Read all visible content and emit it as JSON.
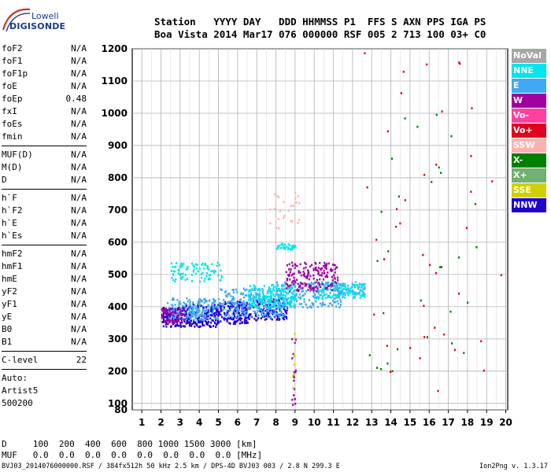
{
  "logo": {
    "line1": "Lowell",
    "line2": "DIGISONDE"
  },
  "header": {
    "line1": "Station   YYYY DAY   DDD HHMMSS P1  FFS S AXN PPS IGA PS",
    "line2": "Boa Vista 2014 Mar17 076 000000 RSF 005 2 713 100 03+ C0"
  },
  "params": {
    "group1": [
      {
        "name": "foF2",
        "value": "N/A"
      },
      {
        "name": "foF1",
        "value": "N/A"
      },
      {
        "name": "foF1p",
        "value": "N/A"
      },
      {
        "name": "foE",
        "value": "N/A"
      },
      {
        "name": "foEp",
        "value": "0.48"
      },
      {
        "name": "fxI",
        "value": "N/A"
      },
      {
        "name": "foEs",
        "value": "N/A"
      },
      {
        "name": "fmin",
        "value": "N/A"
      }
    ],
    "group2": [
      {
        "name": "MUF(D)",
        "value": "N/A"
      },
      {
        "name": "M(D)",
        "value": "N/A"
      },
      {
        "name": "D",
        "value": "N/A"
      }
    ],
    "group3": [
      {
        "name": "h`F",
        "value": "N/A"
      },
      {
        "name": "h`F2",
        "value": "N/A"
      },
      {
        "name": "h`E",
        "value": "N/A"
      },
      {
        "name": "h`Es",
        "value": "N/A"
      }
    ],
    "group4": [
      {
        "name": "hmF2",
        "value": "N/A"
      },
      {
        "name": "hmF1",
        "value": "N/A"
      },
      {
        "name": "hmE",
        "value": "N/A"
      },
      {
        "name": "yF2",
        "value": "N/A"
      },
      {
        "name": "yF1",
        "value": "N/A"
      },
      {
        "name": "yE",
        "value": "N/A"
      },
      {
        "name": "B0",
        "value": "N/A"
      },
      {
        "name": "B1",
        "value": "N/A"
      }
    ],
    "clevel": {
      "name": "C-level",
      "value": "22"
    },
    "auto_lines": [
      "Auto:",
      "Artist5",
      "500200"
    ]
  },
  "bottom": {
    "d_row": "D     100  200  400  600  800 1000 1500 3000 [km]",
    "muf_row": "MUF   0.0  0.0  0.0  0.0  0.0  0.0  0.0  0.0 [MHz]"
  },
  "footer": {
    "left": "BVJ03_2014076000000.RSF / 384fx512h 50 kHz 2.5 km / DPS-4D BVJ03 003 / 2.8 N 299.3 E",
    "right": "Ion2Png v. 1.3.17"
  },
  "legend": [
    {
      "label": "NoVal",
      "color": "#a6a6a6"
    },
    {
      "label": "NNE",
      "color": "#00e5ee"
    },
    {
      "label": "E",
      "color": "#3fa9f5"
    },
    {
      "label": "W",
      "color": "#a000a0"
    },
    {
      "label": "Vo-",
      "color": "#ff40a0"
    },
    {
      "label": "Vo+",
      "color": "#e00020"
    },
    {
      "label": "SSW",
      "color": "#ffb0b0"
    },
    {
      "label": "X-",
      "color": "#008000"
    },
    {
      "label": "X+",
      "color": "#70b070"
    },
    {
      "label": "SSE",
      "color": "#d0d000"
    },
    {
      "label": "NNW",
      "color": "#2000d0"
    }
  ],
  "chart_data": {
    "type": "scatter",
    "xlabel": "",
    "ylabel": "",
    "xlim": [
      0.5,
      20.1
    ],
    "ylim": [
      80,
      1200
    ],
    "x_ticks": [
      1,
      2,
      3,
      4,
      5,
      6,
      7,
      8,
      9,
      10,
      11,
      12,
      13,
      14,
      15,
      16,
      17,
      18,
      19,
      20
    ],
    "y_ticks": [
      80,
      100,
      200,
      300,
      400,
      500,
      600,
      700,
      800,
      900,
      1000,
      1100,
      1200
    ],
    "grid": true,
    "legend_position": "right",
    "series": [
      {
        "name": "NNW",
        "color": "#2000d0",
        "clusters": [
          {
            "x": [
              2.0,
              3.0
            ],
            "y": [
              340,
              400
            ],
            "n": 120
          },
          {
            "x": [
              3.0,
              5.0
            ],
            "y": [
              340,
              410
            ],
            "n": 200
          },
          {
            "x": [
              5.0,
              6.5
            ],
            "y": [
              350,
              420
            ],
            "n": 140
          },
          {
            "x": [
              6.5,
              8.6
            ],
            "y": [
              360,
              430
            ],
            "n": 140
          }
        ]
      },
      {
        "name": "E",
        "color": "#3fa9f5",
        "clusters": [
          {
            "x": [
              2.3,
              5.0
            ],
            "y": [
              360,
              430
            ],
            "n": 180
          },
          {
            "x": [
              5.0,
              8.5
            ],
            "y": [
              370,
              460
            ],
            "n": 220
          },
          {
            "x": [
              8.0,
              11.5
            ],
            "y": [
              400,
              480
            ],
            "n": 180
          },
          {
            "x": [
              11.0,
              12.6
            ],
            "y": [
              440,
              475
            ],
            "n": 60
          }
        ]
      },
      {
        "name": "NNE",
        "color": "#00e5ee",
        "clusters": [
          {
            "x": [
              2.5,
              5.2
            ],
            "y": [
              480,
              540
            ],
            "n": 90
          },
          {
            "x": [
              6.5,
              9.0
            ],
            "y": [
              400,
              470
            ],
            "n": 180
          },
          {
            "x": [
              8.0,
              9.0
            ],
            "y": [
              580,
              600
            ],
            "n": 35
          },
          {
            "x": [
              10.0,
              12.6
            ],
            "y": [
              430,
              480
            ],
            "n": 110
          }
        ]
      },
      {
        "name": "W",
        "color": "#a000a0",
        "clusters": [
          {
            "x": [
              2.0,
              3.2
            ],
            "y": [
              350,
              400
            ],
            "n": 70
          },
          {
            "x": [
              8.5,
              11.2
            ],
            "y": [
              450,
              540
            ],
            "n": 170
          },
          {
            "x": [
              8.8,
              9.0
            ],
            "y": [
              80,
              310
            ],
            "n": 18
          }
        ]
      },
      {
        "name": "SSW",
        "color": "#ffb0b0",
        "clusters": [
          {
            "x": [
              7.5,
              9.2
            ],
            "y": [
              640,
              760
            ],
            "n": 25
          }
        ]
      },
      {
        "name": "Vo+",
        "color": "#e00020",
        "clusters": [
          {
            "x": [
              12.5,
              20.0
            ],
            "y": [
              80,
              1200
            ],
            "n": 40
          }
        ]
      },
      {
        "name": "X-",
        "color": "#008000",
        "clusters": [
          {
            "x": [
              12.5,
              19.5
            ],
            "y": [
              200,
              1000
            ],
            "n": 30
          }
        ]
      },
      {
        "name": "SSE",
        "color": "#d0d000",
        "clusters": [
          {
            "x": [
              8.8,
              9.0
            ],
            "y": [
              150,
              330
            ],
            "n": 8
          }
        ]
      }
    ]
  }
}
